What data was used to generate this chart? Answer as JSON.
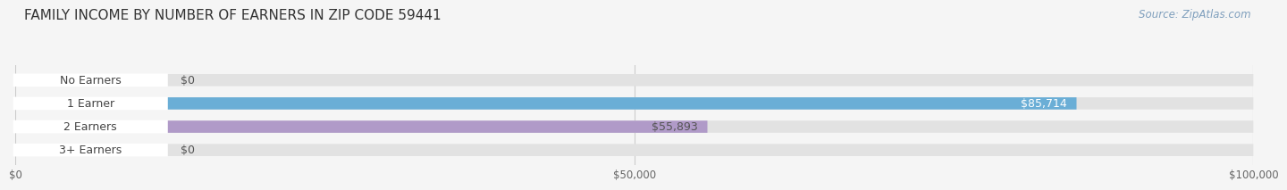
{
  "title": "FAMILY INCOME BY NUMBER OF EARNERS IN ZIP CODE 59441",
  "source": "Source: ZipAtlas.com",
  "categories": [
    "No Earners",
    "1 Earner",
    "2 Earners",
    "3+ Earners"
  ],
  "values": [
    0,
    85714,
    55893,
    0
  ],
  "bar_colors": [
    "#f2a0a8",
    "#6aaed6",
    "#b09ac8",
    "#7ececa"
  ],
  "label_colors": [
    "#555555",
    "#ffffff",
    "#555555",
    "#555555"
  ],
  "xlim": [
    0,
    100000
  ],
  "xticks": [
    0,
    50000,
    100000
  ],
  "xtick_labels": [
    "$0",
    "$50,000",
    "$100,000"
  ],
  "background_color": "#f5f5f5",
  "bar_bg_color": "#e2e2e2",
  "title_fontsize": 11,
  "source_fontsize": 8.5,
  "label_fontsize": 9,
  "category_fontsize": 9
}
